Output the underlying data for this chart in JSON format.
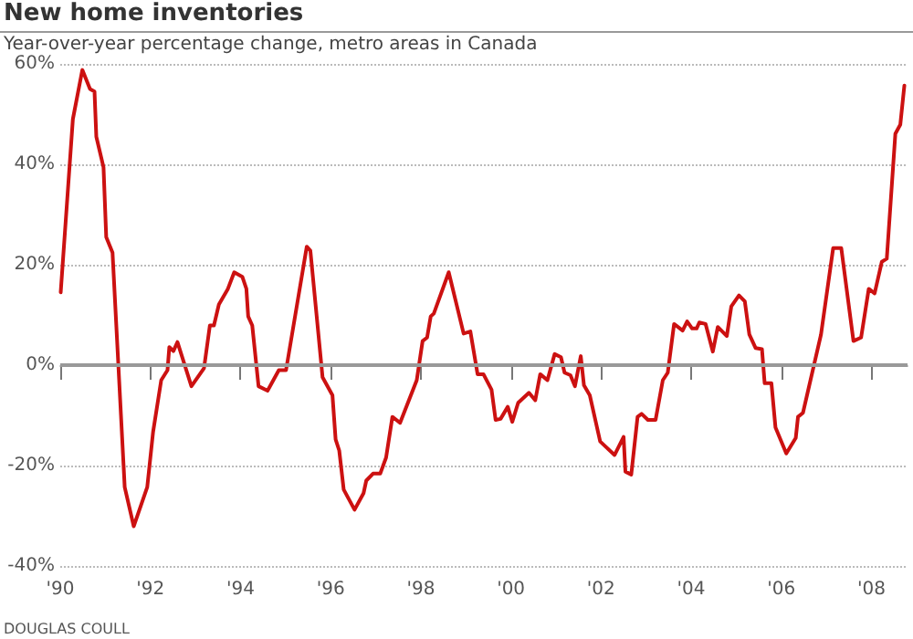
{
  "chart_data": {
    "type": "line",
    "title": "New home inventories",
    "subtitle": "Year-over-year percentage change, metro areas in Canada",
    "annotations": [
      "DOUGLAS COULL"
    ],
    "x": [
      1990.01,
      1990.28,
      1990.49,
      1990.66,
      1990.76,
      1990.8,
      1990.96,
      1991.02,
      1991.16,
      1991.43,
      1991.63,
      1991.93,
      1992.06,
      1992.24,
      1992.38,
      1992.42,
      1992.51,
      1992.6,
      1992.91,
      1993.19,
      1993.32,
      1993.41,
      1993.52,
      1993.72,
      1993.86,
      1994.04,
      1994.13,
      1994.17,
      1994.26,
      1994.4,
      1994.6,
      1994.85,
      1995.01,
      1995.47,
      1995.55,
      1995.82,
      1996.04,
      1996.11,
      1996.19,
      1996.29,
      1996.53,
      1996.73,
      1996.79,
      1996.94,
      1997.1,
      1997.23,
      1997.37,
      1997.54,
      1997.91,
      1998.04,
      1998.14,
      1998.22,
      1998.29,
      1998.62,
      1998.95,
      1999.1,
      1999.26,
      1999.39,
      1999.57,
      1999.66,
      1999.77,
      1999.93,
      2000.03,
      2000.16,
      2000.4,
      2000.54,
      2000.65,
      2000.81,
      2000.97,
      2001.11,
      2001.19,
      2001.32,
      2001.42,
      2001.55,
      2001.62,
      2001.75,
      2001.98,
      2002.3,
      2002.5,
      2002.54,
      2002.67,
      2002.81,
      2002.9,
      2003.04,
      2003.21,
      2003.37,
      2003.48,
      2003.62,
      2003.81,
      2003.91,
      2004.02,
      2004.12,
      2004.18,
      2004.32,
      2004.48,
      2004.59,
      2004.79,
      2004.89,
      2005.06,
      2005.19,
      2005.29,
      2005.43,
      2005.57,
      2005.63,
      2005.78,
      2005.87,
      2006.11,
      2006.32,
      2006.37,
      2006.48,
      2006.88,
      2007.15,
      2007.33,
      2007.6,
      2007.77,
      2007.94,
      2008.07,
      2008.23,
      2008.34,
      2008.53,
      2008.64,
      2008.73
    ],
    "series": [
      {
        "color": "#cc1111",
        "values": [
          14.5,
          49,
          58.8,
          55,
          54.5,
          45.5,
          39.4,
          25.5,
          22.4,
          -24.3,
          -32.1,
          -24.3,
          -13.3,
          -3,
          -1,
          3.6,
          2.8,
          4.6,
          -4.2,
          -0.6,
          7.9,
          7.9,
          12.1,
          15.2,
          18.5,
          17.6,
          15.2,
          9.7,
          7.9,
          -4.2,
          -5.1,
          -1,
          -1,
          23.6,
          22.8,
          -2.4,
          -6,
          -14.8,
          -17,
          -24.8,
          -28.8,
          -25.5,
          -23,
          -21.6,
          -21.6,
          -18.4,
          -10.3,
          -11.5,
          -3,
          4.8,
          5.5,
          9.7,
          10.3,
          18.5,
          6.3,
          6.7,
          -1.8,
          -1.8,
          -4.9,
          -10.9,
          -10.7,
          -8.3,
          -11.3,
          -7.5,
          -5.5,
          -7,
          -1.8,
          -3,
          2.2,
          1.6,
          -1.5,
          -2,
          -4.2,
          1.8,
          -4,
          -6,
          -15.2,
          -17.9,
          -14.3,
          -21.2,
          -21.8,
          -10.3,
          -9.7,
          -10.9,
          -10.9,
          -3,
          -1.5,
          8.2,
          6.9,
          8.7,
          7.3,
          7.3,
          8.5,
          8.2,
          2.7,
          7.6,
          5.8,
          11.7,
          13.9,
          12.7,
          6.1,
          3.4,
          3.2,
          -3.6,
          -3.6,
          -12.4,
          -17.6,
          -14.5,
          -10.3,
          -9.5,
          6.1,
          23.3,
          23.3,
          4.8,
          5.5,
          15.2,
          14.3,
          20.6,
          21.2,
          46.1,
          47.9,
          55.7
        ]
      }
    ],
    "xlim": [
      1990,
      2008.8
    ],
    "xticks": [
      {
        "value": 1990,
        "label": "'90"
      },
      {
        "value": 1992,
        "label": "'92"
      },
      {
        "value": 1994,
        "label": "'94"
      },
      {
        "value": 1996,
        "label": "'96"
      },
      {
        "value": 1998,
        "label": "'98"
      },
      {
        "value": 2000,
        "label": "'00"
      },
      {
        "value": 2002,
        "label": "'02"
      },
      {
        "value": 2004,
        "label": "'04"
      },
      {
        "value": 2006,
        "label": "'06"
      },
      {
        "value": 2008,
        "label": "'08"
      }
    ],
    "ylim": [
      -40,
      60
    ],
    "yticks": [
      {
        "value": -40,
        "label": "-40%"
      },
      {
        "value": -20,
        "label": "-20%"
      },
      {
        "value": 0,
        "label": "0%"
      },
      {
        "value": 20,
        "label": "20%"
      },
      {
        "value": 40,
        "label": "40%"
      },
      {
        "value": 60,
        "label": "60%"
      }
    ],
    "ref_lines": [
      {
        "axis": "y",
        "value": 0,
        "color": "#999999"
      }
    ],
    "grid": "y",
    "marker": "none",
    "line_style": "solid"
  }
}
